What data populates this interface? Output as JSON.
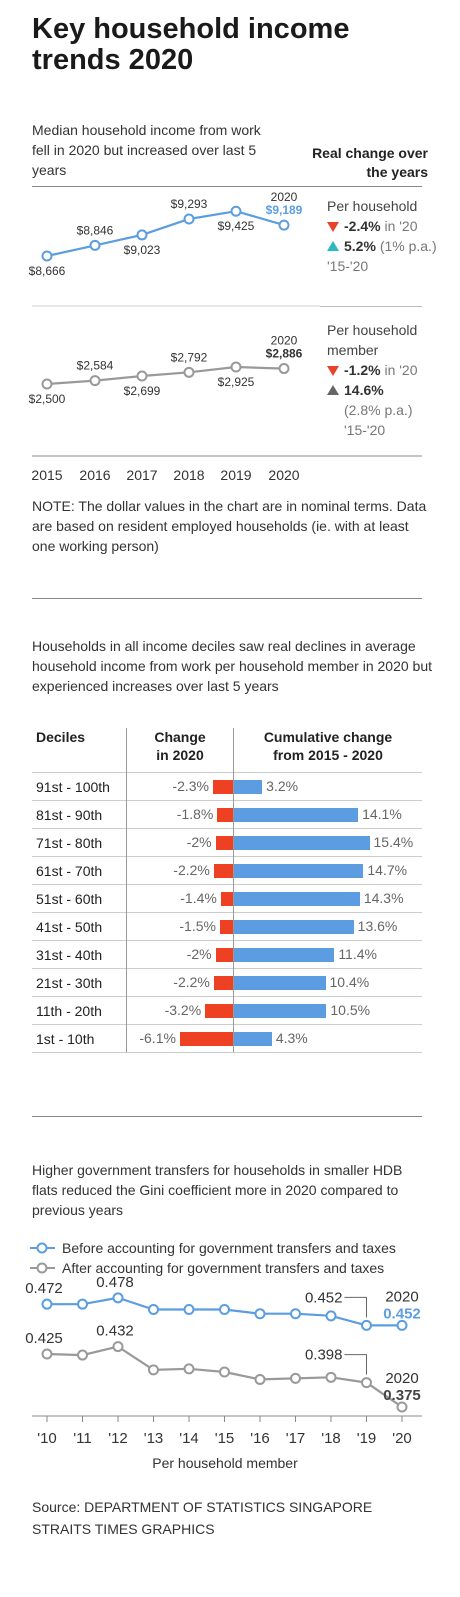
{
  "title": "Key household income trends 2020",
  "section1": {
    "subtitle": "Median household income from work fell in 2020 but increased over last 5 years",
    "real_change_header": "Real change over the years",
    "per_household": {
      "label": "Per household",
      "change_2020": "-2.4%",
      "change_2020_suffix": "in '20",
      "change_5yr": "5.2%",
      "change_5yr_pa": "(1% p.a.)",
      "change_5yr_period": "'15-'20"
    },
    "per_member": {
      "label": "Per household member",
      "change_2020": "-1.2%",
      "change_2020_suffix": "in '20",
      "change_5yr": "14.6%",
      "change_5yr_pa": "(2.8% p.a.)",
      "change_5yr_period": "'15-'20"
    },
    "note": "NOTE: The dollar values in the chart are in nominal terms. Data are based on resident employed households (ie. with at least one working person)"
  },
  "section2": {
    "subtitle": "Households in all income deciles saw real declines in average household income from work per household member in 2020 but experienced increases over last 5 years",
    "col_deciles": "Deciles",
    "col_change": "Change in 2020",
    "col_cumulative": "Cumulative change from 2015 - 2020"
  },
  "section3": {
    "subtitle": "Higher government transfers for households in smaller HDB flats reduced the Gini coefficient more in 2020 compared to previous years",
    "xlabel": "Per household member"
  },
  "source_line1": "Source: DEPARTMENT OF STATISTICS SINGAPORE",
  "source_line2": "STRAITS TIMES GRAPHICS",
  "colors": {
    "blue": "#5b9de0",
    "grey": "#999999",
    "red": "#ee4023",
    "teal": "#2eb6c2"
  },
  "chart_data": [
    {
      "type": "line",
      "x": [
        "2015",
        "2016",
        "2017",
        "2018",
        "2019",
        "2020"
      ],
      "series": [
        {
          "values": [
            8666,
            8846,
            9023,
            9293,
            9425,
            9189
          ],
          "labels": [
            "$8,666",
            "$8,846",
            "$9,023",
            "$9,293",
            "$9,425",
            "$9,189"
          ],
          "highlight_label": "2020"
        },
        {
          "values": [
            2500,
            2584,
            2699,
            2792,
            2925,
            2886
          ],
          "labels": [
            "$2,500",
            "$2,584",
            "$2,699",
            "$2,792",
            "$2,925",
            "$2,886"
          ],
          "highlight_label": "2020"
        }
      ],
      "grid": false
    },
    {
      "type": "bar",
      "categories": [
        "91st - 100th",
        "81st - 90th",
        "71st - 80th",
        "61st - 70th",
        "51st - 60th",
        "41st - 50th",
        "31st - 40th",
        "21st - 30th",
        "11th - 20th",
        "1st - 10th"
      ],
      "series": [
        {
          "name": "Change in 2020",
          "values": [
            -2.3,
            -1.8,
            -2,
            -2.2,
            -1.4,
            -1.5,
            -2,
            -2.2,
            -3.2,
            -6.1
          ],
          "labels": [
            "-2.3%",
            "-1.8%",
            "-2%",
            "-2.2%",
            "-1.4%",
            "-1.5%",
            "-2%",
            "-2.2%",
            "-3.2%",
            "-6.1%"
          ]
        },
        {
          "name": "Cumulative change from 2015 - 2020",
          "values": [
            3.2,
            14.1,
            15.4,
            14.7,
            14.3,
            13.6,
            11.4,
            10.4,
            10.5,
            4.3
          ],
          "labels": [
            "3.2%",
            "14.1%",
            "15.4%",
            "14.7%",
            "14.3%",
            "13.6%",
            "11.4%",
            "10.4%",
            "10.5%",
            "4.3%"
          ]
        }
      ]
    },
    {
      "type": "line",
      "x": [
        "'10",
        "'11",
        "'12",
        "'13",
        "'14",
        "'15",
        "'16",
        "'17",
        "'18",
        "'19",
        "'20"
      ],
      "xlabel": "Per household member",
      "series": [
        {
          "name": "Before accounting for government transfers and taxes",
          "values": [
            0.472,
            0.472,
            0.478,
            0.467,
            0.467,
            0.467,
            0.463,
            0.463,
            0.461,
            0.452,
            0.452
          ],
          "point_labels": {
            "0": "0.472",
            "2": "0.478",
            "9": "0.452",
            "10": "0.452"
          },
          "end_label": "2020"
        },
        {
          "name": "After accounting for government transfers and taxes",
          "values": [
            0.425,
            0.424,
            0.432,
            0.41,
            0.411,
            0.408,
            0.401,
            0.402,
            0.403,
            0.398,
            0.375
          ],
          "point_labels": {
            "0": "0.425",
            "2": "0.432",
            "9": "0.398",
            "10": "0.375"
          },
          "end_label": "2020"
        }
      ],
      "legend": "top-left",
      "grid": false
    }
  ]
}
